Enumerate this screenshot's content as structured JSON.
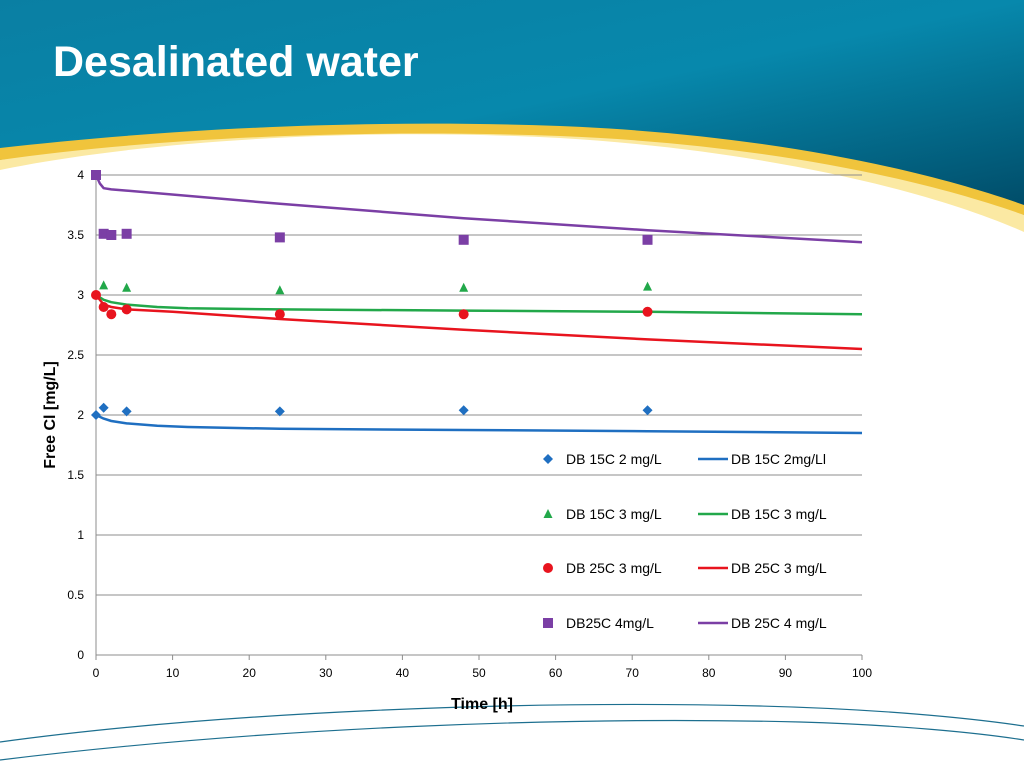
{
  "slide": {
    "title": "Desalinated water"
  },
  "colors": {
    "header_dark": "#005a7a",
    "header_mid": "#0086a8",
    "swoosh_yellow": "#f0c43c",
    "swoosh_light": "#fbe9a3"
  },
  "chart_data": {
    "type": "scatter",
    "xlabel": "Time [h]",
    "ylabel": "Free Cl [mg/L]",
    "xlim": [
      0,
      100
    ],
    "ylim": [
      0,
      4
    ],
    "xticks": [
      0,
      10,
      20,
      30,
      40,
      50,
      60,
      70,
      80,
      90,
      100
    ],
    "yticks": [
      0,
      0.5,
      1,
      1.5,
      2,
      2.5,
      3,
      3.5,
      4
    ],
    "grid": "horizontal",
    "legend_position": "inside-right",
    "series": [
      {
        "name": "DB 15C 2 mg/L",
        "kind": "markers",
        "marker": "diamond",
        "color": "#1f6fc1",
        "x": [
          0,
          1,
          4,
          24,
          48,
          72
        ],
        "y": [
          2.0,
          2.06,
          2.03,
          2.03,
          2.04,
          2.04
        ]
      },
      {
        "name": "DB 15C  2mg/Ll",
        "kind": "line",
        "color": "#1f6fc1",
        "x": [
          0,
          1,
          2,
          4,
          8,
          12,
          24,
          48,
          72,
          100
        ],
        "y": [
          2.0,
          1.97,
          1.95,
          1.93,
          1.91,
          1.9,
          1.885,
          1.875,
          1.865,
          1.85
        ]
      },
      {
        "name": "DB 15C 3 mg/L",
        "kind": "markers",
        "marker": "triangle",
        "color": "#22a84a",
        "x": [
          1,
          4,
          24,
          48,
          72
        ],
        "y": [
          3.08,
          3.06,
          3.04,
          3.06,
          3.07
        ]
      },
      {
        "name": "DB 15C 3 mg/L",
        "kind": "line",
        "color": "#22a84a",
        "x": [
          0,
          1,
          2,
          4,
          8,
          12,
          24,
          48,
          72,
          100
        ],
        "y": [
          3.0,
          2.96,
          2.94,
          2.92,
          2.9,
          2.89,
          2.88,
          2.87,
          2.86,
          2.84
        ]
      },
      {
        "name": "DB 25C 3 mg/L",
        "kind": "markers",
        "marker": "circle",
        "color": "#e8141e",
        "x": [
          0,
          1,
          2,
          4,
          24,
          48,
          72
        ],
        "y": [
          3.0,
          2.9,
          2.84,
          2.88,
          2.84,
          2.84,
          2.86
        ]
      },
      {
        "name": "DB 25C 3 mg/L",
        "kind": "line",
        "color": "#e8141e",
        "x": [
          0,
          1,
          2,
          4,
          10,
          24,
          48,
          72,
          100
        ],
        "y": [
          3.0,
          2.92,
          2.9,
          2.88,
          2.86,
          2.8,
          2.71,
          2.63,
          2.55
        ]
      },
      {
        "name": "DB25C 4mg/L",
        "kind": "markers",
        "marker": "square",
        "color": "#7b3fa5",
        "x": [
          0,
          1,
          2,
          4,
          24,
          48,
          72
        ],
        "y": [
          4.0,
          3.51,
          3.5,
          3.51,
          3.48,
          3.46,
          3.46
        ]
      },
      {
        "name": "DB 25C 4 mg/L",
        "kind": "line",
        "color": "#7b3fa5",
        "x": [
          0,
          0.5,
          1,
          2,
          4,
          24,
          48,
          72,
          100
        ],
        "y": [
          4.0,
          3.93,
          3.89,
          3.88,
          3.87,
          3.76,
          3.64,
          3.54,
          3.44
        ]
      }
    ]
  }
}
